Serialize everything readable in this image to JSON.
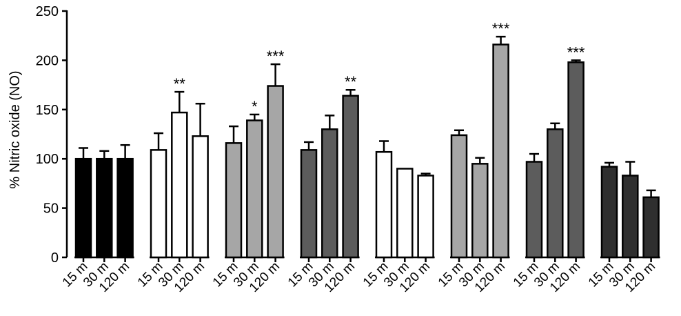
{
  "chart_data": {
    "type": "bar",
    "ylabel": "% Nitric oxide (NO)",
    "xlabel": "",
    "ylim": [
      0,
      250
    ],
    "yticks": [
      0,
      50,
      100,
      150,
      200,
      250
    ],
    "grid": false,
    "tick_labels": [
      "15 m",
      "30 m",
      "120 m"
    ],
    "groups": [
      {
        "fill": "#000000",
        "bars": [
          {
            "label": "15 m",
            "value": 100,
            "error": 11,
            "sig": ""
          },
          {
            "label": "30 m",
            "value": 100,
            "error": 8,
            "sig": ""
          },
          {
            "label": "120 m",
            "value": 100,
            "error": 14,
            "sig": ""
          }
        ]
      },
      {
        "fill": "#ffffff",
        "bars": [
          {
            "label": "15 m",
            "value": 109,
            "error": 17,
            "sig": ""
          },
          {
            "label": "30 m",
            "value": 147,
            "error": 21,
            "sig": "**"
          },
          {
            "label": "120 m",
            "value": 123,
            "error": 33,
            "sig": ""
          }
        ]
      },
      {
        "fill": "#a6a6a6",
        "bars": [
          {
            "label": "15 m",
            "value": 116,
            "error": 17,
            "sig": ""
          },
          {
            "label": "30 m",
            "value": 139,
            "error": 6,
            "sig": "*"
          },
          {
            "label": "120 m",
            "value": 174,
            "error": 22,
            "sig": "***"
          }
        ]
      },
      {
        "fill": "#5c5c5c",
        "bars": [
          {
            "label": "15 m",
            "value": 109,
            "error": 8,
            "sig": ""
          },
          {
            "label": "30 m",
            "value": 130,
            "error": 14,
            "sig": ""
          },
          {
            "label": "120 m",
            "value": 164,
            "error": 6,
            "sig": "**"
          }
        ]
      },
      {
        "fill": "#ffffff",
        "bars": [
          {
            "label": "15 m",
            "value": 107,
            "error": 11,
            "sig": ""
          },
          {
            "label": "30 m",
            "value": 90,
            "error": 0,
            "sig": ""
          },
          {
            "label": "120 m",
            "value": 83,
            "error": 2,
            "sig": ""
          }
        ]
      },
      {
        "fill": "#a6a6a6",
        "bars": [
          {
            "label": "15 m",
            "value": 124,
            "error": 5,
            "sig": ""
          },
          {
            "label": "30 m",
            "value": 95,
            "error": 6,
            "sig": ""
          },
          {
            "label": "120 m",
            "value": 216,
            "error": 8,
            "sig": "***"
          }
        ]
      },
      {
        "fill": "#5c5c5c",
        "bars": [
          {
            "label": "15 m",
            "value": 97,
            "error": 8,
            "sig": ""
          },
          {
            "label": "30 m",
            "value": 130,
            "error": 6,
            "sig": ""
          },
          {
            "label": "120 m",
            "value": 198,
            "error": 2,
            "sig": "***"
          }
        ]
      },
      {
        "fill": "#2f2f2f",
        "bars": [
          {
            "label": "15 m",
            "value": 92,
            "error": 4,
            "sig": ""
          },
          {
            "label": "30 m",
            "value": 83,
            "error": 14,
            "sig": ""
          },
          {
            "label": "120 m",
            "value": 61,
            "error": 7,
            "sig": ""
          }
        ]
      }
    ]
  }
}
